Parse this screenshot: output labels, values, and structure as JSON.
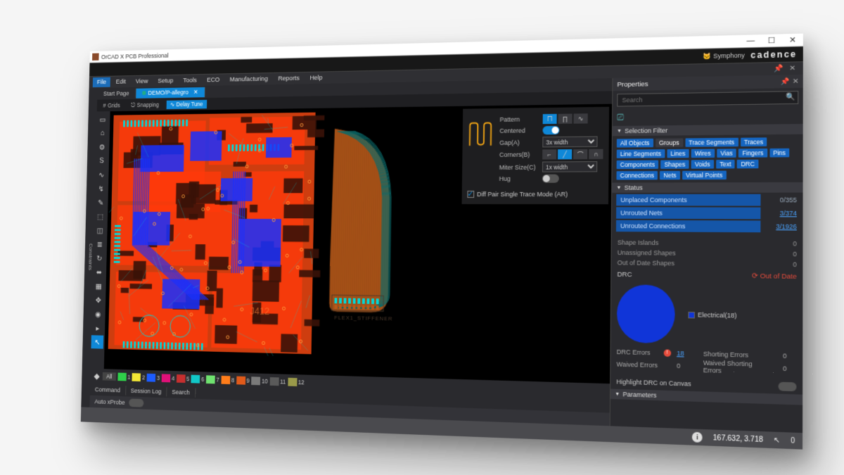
{
  "titlebar": {
    "title": "OrCAD X PCB Professional",
    "min": "—",
    "max": "☐",
    "close": "✕"
  },
  "brand": {
    "symphony": "Symphony",
    "cadence": "cadence"
  },
  "menu": [
    "File",
    "Edit",
    "View",
    "Setup",
    "Tools",
    "ECO",
    "Manufacturing",
    "Reports",
    "Help"
  ],
  "tabs": {
    "start": "Start Page",
    "project": "DEMO/P-allegro"
  },
  "opts": {
    "grids": "Grids",
    "snapping": "Snapping",
    "delay": "Delay Tune"
  },
  "vtool_glyphs": [
    "▭",
    "⌂",
    "⚙",
    "S",
    "∿",
    "↯",
    "✎",
    "⬚",
    "◫",
    "≣",
    "↻",
    "⬌",
    "▦",
    "✥",
    "◉",
    "▸",
    "↖"
  ],
  "routing": {
    "pattern": "Pattern",
    "centered": "Centered",
    "gap": "Gap(A)",
    "corners": "Corners(B)",
    "miter": "Miter Size(C)",
    "hug": "Hug",
    "diff": "Diff Pair Single Trace Mode (AR)",
    "gap_opt": "3x width",
    "miter_opt": "1x width",
    "serp_color": "#f2a514"
  },
  "layers": {
    "all": "All",
    "items": [
      {
        "n": "1",
        "c": "#2fd04a"
      },
      {
        "n": "2",
        "c": "#f2e635"
      },
      {
        "n": "3",
        "c": "#1c5cff"
      },
      {
        "n": "4",
        "c": "#e01078"
      },
      {
        "n": "5",
        "c": "#c62f2f"
      },
      {
        "n": "6",
        "c": "#11c7c7"
      },
      {
        "n": "7",
        "c": "#6fe26f"
      },
      {
        "n": "8",
        "c": "#ff7d1a"
      },
      {
        "n": "9",
        "c": "#e05a1a"
      },
      {
        "n": "10",
        "c": "#7a7a7a"
      },
      {
        "n": "11",
        "c": "#5a5a5a"
      },
      {
        "n": "12",
        "c": "#9a9a4a"
      }
    ]
  },
  "pcb": {
    "board_color": "#e04210",
    "cu_bright": "#ff3a0a",
    "net_blue": "#1830ff",
    "net_cyan": "#00d8d8",
    "dark_pad": "#3a1208",
    "flex_cu": "#b85a1a",
    "flex_trace": "#0a6a6a",
    "flex_stiff": "#4a382a",
    "via_ring": "#ff9a3a"
  },
  "flex_label": "FLEX1_STIFFENER",
  "props": {
    "title": "Properties",
    "search_ph": "Search",
    "filter_h": "Selection Filter",
    "chips": [
      "All Objects",
      "Groups",
      "Trace Segments",
      "Traces",
      "Line Segments",
      "Lines",
      "Wires",
      "Vias",
      "Fingers",
      "Pins",
      "Components",
      "Shapes",
      "Voids",
      "Text",
      "DRC",
      "Connections",
      "Nets",
      "Virtual Points"
    ],
    "chip_alt_idx": 1,
    "status_h": "Status",
    "status_rows": [
      {
        "label": "Unplaced Components",
        "val": "0",
        "tot": "355",
        "link": false
      },
      {
        "label": "Unrouted Nets",
        "val": "3",
        "tot": "374",
        "link": true
      },
      {
        "label": "Unrouted Connections",
        "val": "3",
        "tot": "1926",
        "link": true
      }
    ],
    "plain_rows": [
      {
        "l": "Shape Islands",
        "v": "0"
      },
      {
        "l": "Unassigned Shapes",
        "v": "0"
      },
      {
        "l": "Out of Date Shapes",
        "v": "0"
      }
    ],
    "drc": {
      "label": "DRC",
      "ood": "Out of Date",
      "legend": "Electrical(18)",
      "errors_l": "DRC Errors",
      "errors": "18",
      "waived_l": "Waived Errors",
      "waived": "0",
      "short_l": "Shorting Errors",
      "short": "0",
      "wshort_l": "Waived Shorting Errors",
      "wshort": "0",
      "hl": "Highlight DRC on Canvas",
      "pie_color": "#1035d8"
    },
    "params_h": "Parameters"
  },
  "btabs": [
    "Command",
    "Session Log",
    "Search"
  ],
  "probe": {
    "label": "Auto xProbe"
  },
  "status": {
    "coord": "167.632, 3.718",
    "zero": "0"
  },
  "colors": {
    "accent": "#0f88d8",
    "bg": "#2a2a2e",
    "panel": "#333338",
    "dark": "#1f1f22",
    "status_bar_bg": "#1556a8",
    "link": "#4aa3ff",
    "danger": "#e74c3c"
  }
}
